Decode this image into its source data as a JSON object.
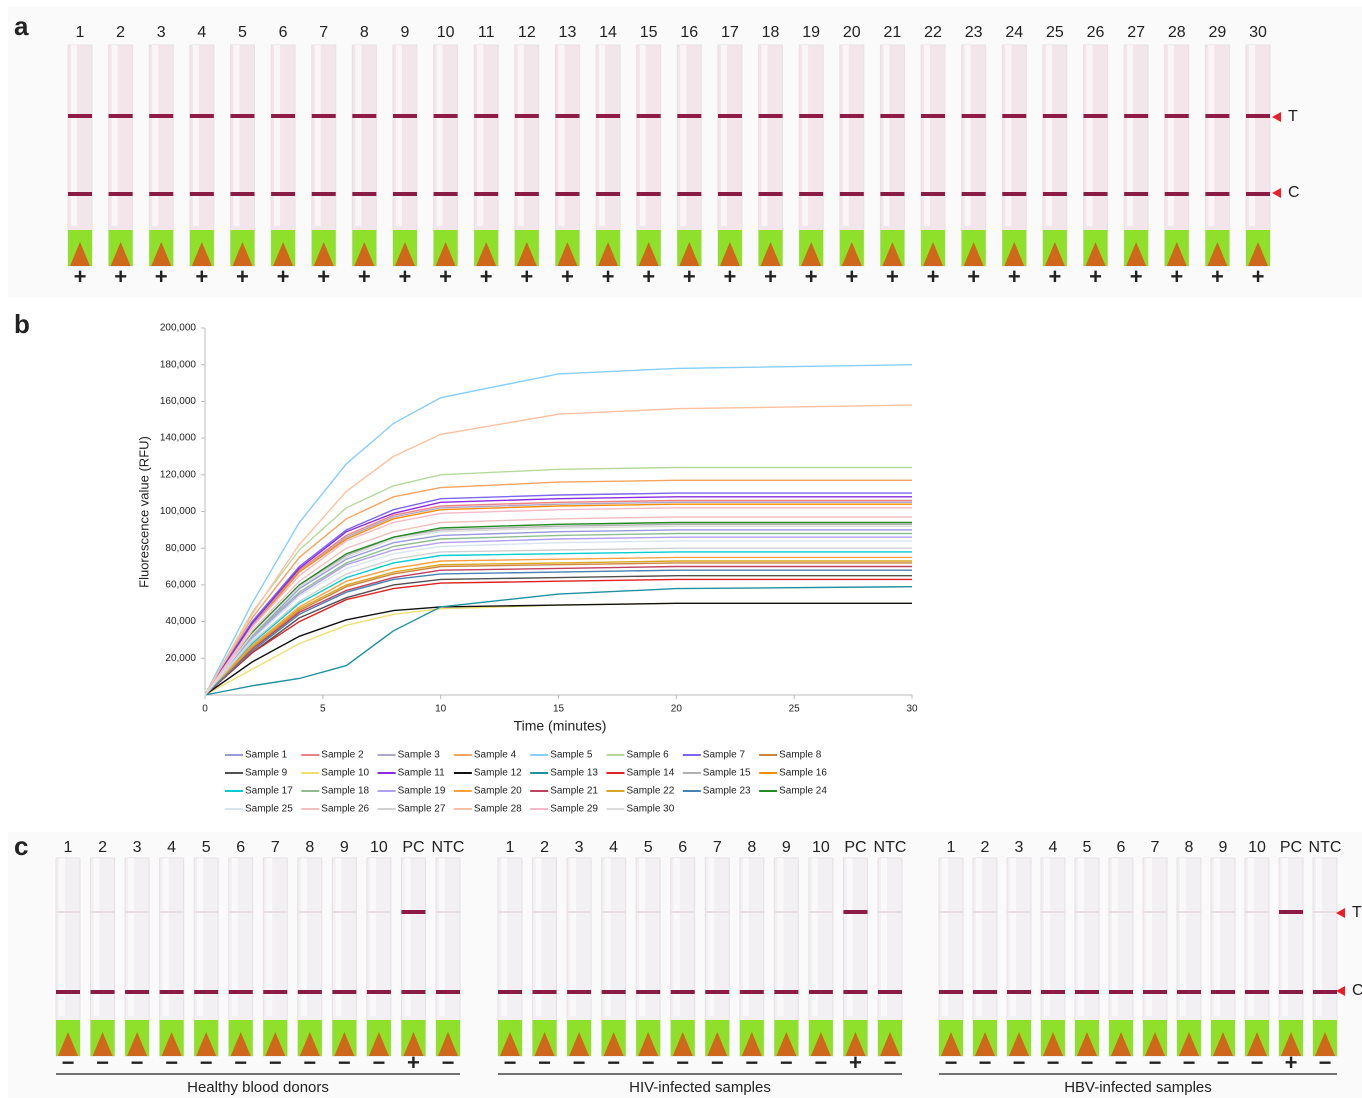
{
  "panel_a": {
    "label": "a",
    "lanes": [
      "1",
      "2",
      "3",
      "4",
      "5",
      "6",
      "7",
      "8",
      "9",
      "10",
      "11",
      "12",
      "13",
      "14",
      "15",
      "16",
      "17",
      "18",
      "19",
      "20",
      "21",
      "22",
      "23",
      "24",
      "25",
      "26",
      "27",
      "28",
      "29",
      "30"
    ],
    "results": [
      "+",
      "+",
      "+",
      "+",
      "+",
      "+",
      "+",
      "+",
      "+",
      "+",
      "+",
      "+",
      "+",
      "+",
      "+",
      "+",
      "+",
      "+",
      "+",
      "+",
      "+",
      "+",
      "+",
      "+",
      "+",
      "+",
      "+",
      "+",
      "+",
      "+"
    ],
    "markers": [
      "T",
      "C"
    ]
  },
  "chart_data": {
    "type": "line",
    "label": "b",
    "y_label": "Fluorescence value (RFU)",
    "x_label": "Time (minutes)",
    "x": [
      0,
      2,
      4,
      6,
      8,
      10,
      15,
      20,
      30
    ],
    "xlim": [
      0,
      30
    ],
    "xticks": [
      0,
      5,
      10,
      15,
      20,
      25,
      30
    ],
    "ylim": [
      0,
      200000
    ],
    "yticks": [
      {
        "value": 20000,
        "label": "20,000"
      },
      {
        "value": 40000,
        "label": "40,000"
      },
      {
        "value": 60000,
        "label": "60,000"
      },
      {
        "value": 80000,
        "label": "80,000"
      },
      {
        "value": 100000,
        "label": "100,000"
      },
      {
        "value": 120000,
        "label": "120,000"
      },
      {
        "value": 140000,
        "label": "140,000"
      },
      {
        "value": 160000,
        "label": "160,000"
      },
      {
        "value": 180000,
        "label": "180,000"
      },
      {
        "value": 200000,
        "label": "200,000"
      }
    ],
    "series": [
      {
        "name": "Sample 1",
        "color": "#9999dd",
        "values": [
          0,
          32000,
          58000,
          74000,
          83000,
          87000,
          89000,
          90000,
          90000
        ]
      },
      {
        "name": "Sample 2",
        "color": "#f08080",
        "values": [
          0,
          38000,
          68000,
          87000,
          98000,
          103000,
          105000,
          106000,
          106000
        ]
      },
      {
        "name": "Sample 3",
        "color": "#a9a9c9",
        "values": [
          0,
          38000,
          67000,
          86000,
          97000,
          102000,
          104000,
          105000,
          105000
        ]
      },
      {
        "name": "Sample 4",
        "color": "#f4a460",
        "values": [
          0,
          42000,
          75000,
          96000,
          108000,
          113000,
          116000,
          117000,
          117000
        ]
      },
      {
        "name": "Sample 5",
        "color": "#87cefa",
        "values": [
          0,
          50000,
          94000,
          126000,
          148000,
          162000,
          175000,
          178000,
          180000
        ]
      },
      {
        "name": "Sample 6",
        "color": "#b5d99c",
        "values": [
          0,
          45000,
          79000,
          102000,
          114000,
          120000,
          123000,
          124000,
          124000
        ]
      },
      {
        "name": "Sample 7",
        "color": "#7b68ee",
        "values": [
          0,
          40000,
          70000,
          90000,
          101000,
          107000,
          109000,
          110000,
          110000
        ]
      },
      {
        "name": "Sample 8",
        "color": "#cd853f",
        "values": [
          0,
          26000,
          46000,
          59000,
          66000,
          70000,
          71000,
          72000,
          72000
        ]
      },
      {
        "name": "Sample 9",
        "color": "#505050",
        "values": [
          0,
          23000,
          42000,
          53000,
          60000,
          63000,
          64000,
          65000,
          65000
        ]
      },
      {
        "name": "Sample 10",
        "color": "#eee070",
        "values": [
          0,
          14000,
          28000,
          38000,
          44000,
          47000,
          49000,
          50000,
          50000
        ]
      },
      {
        "name": "Sample 11",
        "color": "#8a2be2",
        "values": [
          0,
          39000,
          69000,
          89000,
          99000,
          105000,
          107000,
          108000,
          108000
        ]
      },
      {
        "name": "Sample 12",
        "color": "#111111",
        "values": [
          0,
          18000,
          32000,
          41000,
          46000,
          48000,
          49000,
          50000,
          50000
        ]
      },
      {
        "name": "Sample 13",
        "color": "#1e90a0",
        "values": [
          0,
          5000,
          9000,
          16000,
          35000,
          48000,
          55000,
          58000,
          59000
        ]
      },
      {
        "name": "Sample 14",
        "color": "#e02020",
        "values": [
          0,
          23000,
          40000,
          52000,
          58000,
          61000,
          62000,
          63000,
          63000
        ]
      },
      {
        "name": "Sample 15",
        "color": "#b0b0b0",
        "values": [
          0,
          33000,
          60000,
          76000,
          86000,
          90000,
          92000,
          93000,
          93000
        ]
      },
      {
        "name": "Sample 16",
        "color": "#ff8c00",
        "values": [
          0,
          37000,
          67000,
          85000,
          96000,
          101000,
          103000,
          104000,
          104000
        ]
      },
      {
        "name": "Sample 17",
        "color": "#00ced1",
        "values": [
          0,
          28000,
          50000,
          64000,
          72000,
          76000,
          77000,
          78000,
          78000
        ]
      },
      {
        "name": "Sample 18",
        "color": "#8fbc8f",
        "values": [
          0,
          32000,
          56000,
          72000,
          81000,
          85000,
          87000,
          88000,
          88000
        ]
      },
      {
        "name": "Sample 19",
        "color": "#b0a0f0",
        "values": [
          0,
          31000,
          55000,
          71000,
          79000,
          83000,
          85000,
          86000,
          86000
        ]
      },
      {
        "name": "Sample 20",
        "color": "#ffa040",
        "values": [
          0,
          27000,
          48000,
          62000,
          69000,
          73000,
          74000,
          75000,
          75000
        ]
      },
      {
        "name": "Sample 21",
        "color": "#c04060",
        "values": [
          0,
          25000,
          45000,
          57000,
          64000,
          68000,
          69000,
          70000,
          70000
        ]
      },
      {
        "name": "Sample 22",
        "color": "#daa520",
        "values": [
          0,
          26000,
          47000,
          60000,
          67000,
          71000,
          72000,
          73000,
          73000
        ]
      },
      {
        "name": "Sample 23",
        "color": "#4682b4",
        "values": [
          0,
          24000,
          44000,
          56000,
          63000,
          66000,
          67000,
          68000,
          68000
        ]
      },
      {
        "name": "Sample 24",
        "color": "#228b22",
        "values": [
          0,
          34000,
          60000,
          77000,
          86000,
          91000,
          93000,
          94000,
          94000
        ]
      },
      {
        "name": "Sample 25",
        "color": "#d8e4f0",
        "values": [
          0,
          30000,
          54000,
          69000,
          77000,
          81000,
          83000,
          84000,
          84000
        ]
      },
      {
        "name": "Sample 26",
        "color": "#f0c0c0",
        "values": [
          0,
          35000,
          62000,
          80000,
          89000,
          94000,
          96000,
          97000,
          97000
        ]
      },
      {
        "name": "Sample 27",
        "color": "#d0d0d0",
        "values": [
          0,
          29000,
          51000,
          66000,
          74000,
          78000,
          79000,
          80000,
          80000
        ]
      },
      {
        "name": "Sample 28",
        "color": "#ffc0a0",
        "values": [
          0,
          44000,
          82000,
          111000,
          130000,
          142000,
          153000,
          156000,
          158000
        ]
      },
      {
        "name": "Sample 29",
        "color": "#f4b8c8",
        "values": [
          0,
          37000,
          65000,
          84000,
          94000,
          99000,
          101000,
          102000,
          102000
        ]
      },
      {
        "name": "Sample 30",
        "color": "#dcdcdc",
        "values": [
          0,
          33000,
          59000,
          75000,
          85000,
          89000,
          91000,
          92000,
          92000
        ]
      }
    ]
  },
  "panel_c": {
    "label": "c",
    "markers": [
      "T",
      "C"
    ],
    "groups": [
      {
        "name": "Healthy blood donors",
        "lanes": [
          "1",
          "2",
          "3",
          "4",
          "5",
          "6",
          "7",
          "8",
          "9",
          "10",
          "PC",
          "NTC"
        ],
        "results": [
          "−",
          "−",
          "−",
          "−",
          "−",
          "−",
          "−",
          "−",
          "−",
          "−",
          "+",
          "−"
        ]
      },
      {
        "name": "HIV-infected samples",
        "lanes": [
          "1",
          "2",
          "3",
          "4",
          "5",
          "6",
          "7",
          "8",
          "9",
          "10",
          "PC",
          "NTC"
        ],
        "results": [
          "−",
          "−",
          "−",
          "−",
          "−",
          "−",
          "−",
          "−",
          "−",
          "−",
          "+",
          "−"
        ]
      },
      {
        "name": "HBV-infected samples",
        "lanes": [
          "1",
          "2",
          "3",
          "4",
          "5",
          "6",
          "7",
          "8",
          "9",
          "10",
          "PC",
          "NTC"
        ],
        "results": [
          "−",
          "−",
          "−",
          "−",
          "−",
          "−",
          "−",
          "−",
          "−",
          "−",
          "+",
          "−"
        ]
      }
    ]
  }
}
